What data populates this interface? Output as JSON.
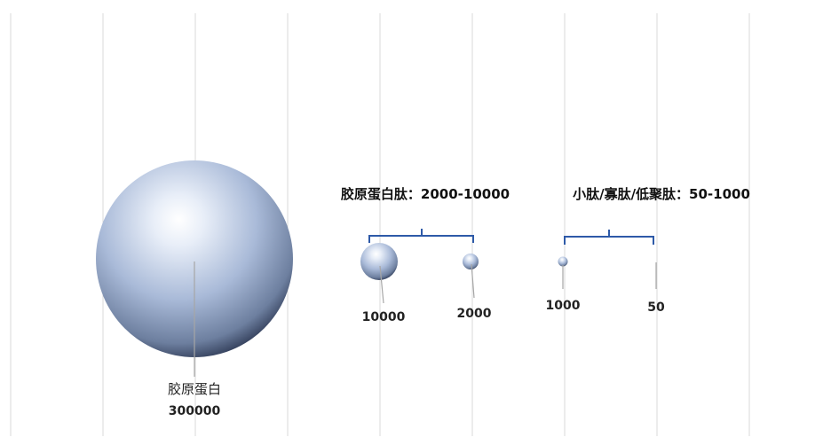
{
  "colors": {
    "sphere_light": "#ffffff",
    "sphere_mid": "#aebfdc",
    "sphere_dark": "#2a3550",
    "bracket": "#2e5aa8",
    "gridline": "#d9d9d9",
    "leader": "#a6a6a6"
  },
  "chart_data": {
    "type": "scatter",
    "title": "",
    "grid": true,
    "points": [
      {
        "name": "胶原蛋白",
        "value_label": "300000",
        "value": 300000
      },
      {
        "name": "",
        "value_label": "10000",
        "value": 10000
      },
      {
        "name": "",
        "value_label": "2000",
        "value": 2000
      },
      {
        "name": "",
        "value_label": "1000",
        "value": 1000
      },
      {
        "name": "",
        "value_label": "50",
        "value": 50
      }
    ],
    "groups": [
      {
        "label": "胶原蛋白肽：2000-10000",
        "range": [
          2000,
          10000
        ]
      },
      {
        "label": "小肽/寡肽/低聚肽：50-1000",
        "range": [
          50,
          1000
        ]
      }
    ]
  }
}
